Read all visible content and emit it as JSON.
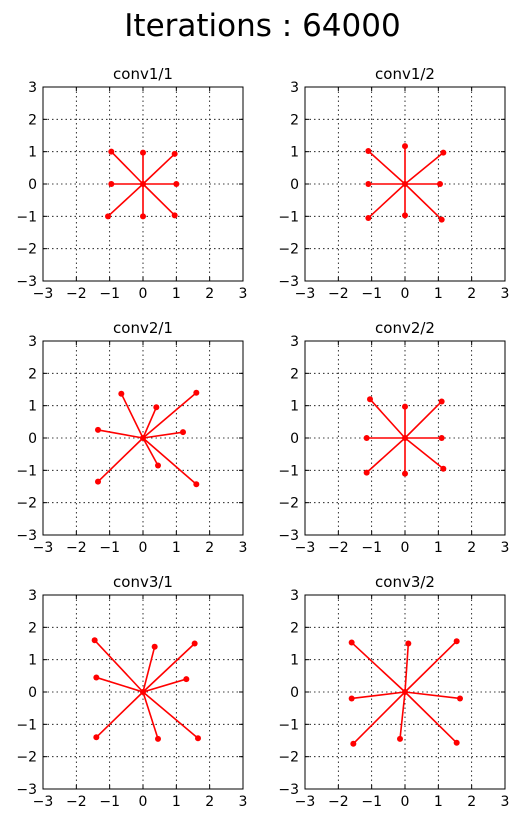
{
  "figure": {
    "title": "Iterations : 64000"
  },
  "style": {
    "series_color": "#ff0000",
    "axis_color": "#000000",
    "grid_color": "#000000"
  },
  "chart_data": [
    {
      "type": "scatter",
      "title": "conv1/1",
      "xlabel": "",
      "ylabel": "",
      "xlim": [
        -3,
        3
      ],
      "ylim": [
        -3,
        3
      ],
      "xticks": [
        "−3",
        "−2",
        "−1",
        "0",
        "1",
        "2",
        "3"
      ],
      "yticks": [
        "−3",
        "−2",
        "−1",
        "0",
        "1",
        "2",
        "3"
      ],
      "grid": true,
      "center": [
        0,
        0
      ],
      "points": [
        [
          -0.95,
          1.0
        ],
        [
          0.0,
          0.97
        ],
        [
          0.95,
          0.93
        ],
        [
          -0.95,
          0.0
        ],
        [
          1.0,
          0.0
        ],
        [
          -1.05,
          -1.0
        ],
        [
          0.0,
          -1.0
        ],
        [
          0.95,
          -0.97
        ]
      ]
    },
    {
      "type": "scatter",
      "title": "conv1/2",
      "xlabel": "",
      "ylabel": "",
      "xlim": [
        -3,
        3
      ],
      "ylim": [
        -3,
        3
      ],
      "xticks": [
        "−3",
        "−2",
        "−1",
        "0",
        "1",
        "2",
        "3"
      ],
      "yticks": [
        "−3",
        "−2",
        "−1",
        "0",
        "1",
        "2",
        "3"
      ],
      "grid": true,
      "center": [
        0,
        0
      ],
      "points": [
        [
          -1.1,
          1.02
        ],
        [
          0.0,
          1.17
        ],
        [
          1.15,
          0.97
        ],
        [
          -1.1,
          0.0
        ],
        [
          1.05,
          0.0
        ],
        [
          -1.1,
          -1.05
        ],
        [
          0.0,
          -0.97
        ],
        [
          1.1,
          -1.1
        ]
      ]
    },
    {
      "type": "scatter",
      "title": "conv2/1",
      "xlabel": "",
      "ylabel": "",
      "xlim": [
        -3,
        3
      ],
      "ylim": [
        -3,
        3
      ],
      "xticks": [
        "−3",
        "−2",
        "−1",
        "0",
        "1",
        "2",
        "3"
      ],
      "yticks": [
        "−3",
        "−2",
        "−1",
        "0",
        "1",
        "2",
        "3"
      ],
      "grid": true,
      "center": [
        0,
        0
      ],
      "points": [
        [
          -0.65,
          1.37
        ],
        [
          0.4,
          0.95
        ],
        [
          1.6,
          1.4
        ],
        [
          -1.35,
          0.25
        ],
        [
          1.2,
          0.18
        ],
        [
          -1.35,
          -1.35
        ],
        [
          0.45,
          -0.85
        ],
        [
          1.6,
          -1.43
        ]
      ]
    },
    {
      "type": "scatter",
      "title": "conv2/2",
      "xlabel": "",
      "ylabel": "",
      "xlim": [
        -3,
        3
      ],
      "ylim": [
        -3,
        3
      ],
      "xticks": [
        "−3",
        "−2",
        "−1",
        "0",
        "1",
        "2",
        "3"
      ],
      "yticks": [
        "−3",
        "−2",
        "−1",
        "0",
        "1",
        "2",
        "3"
      ],
      "grid": true,
      "center": [
        0,
        0
      ],
      "points": [
        [
          -1.05,
          1.2
        ],
        [
          0.0,
          0.97
        ],
        [
          1.1,
          1.13
        ],
        [
          -1.15,
          0.0
        ],
        [
          1.1,
          0.0
        ],
        [
          -1.15,
          -1.07
        ],
        [
          0.0,
          -1.1
        ],
        [
          1.15,
          -0.95
        ]
      ]
    },
    {
      "type": "scatter",
      "title": "conv3/1",
      "xlabel": "",
      "ylabel": "",
      "xlim": [
        -3,
        3
      ],
      "ylim": [
        -3,
        3
      ],
      "xticks": [
        "−3",
        "−2",
        "−1",
        "0",
        "1",
        "2",
        "3"
      ],
      "yticks": [
        "−3",
        "−2",
        "−1",
        "0",
        "1",
        "2",
        "3"
      ],
      "grid": true,
      "center": [
        0,
        0
      ],
      "points": [
        [
          -1.45,
          1.6
        ],
        [
          0.35,
          1.4
        ],
        [
          1.55,
          1.5
        ],
        [
          -1.4,
          0.45
        ],
        [
          1.3,
          0.4
        ],
        [
          -1.4,
          -1.4
        ],
        [
          0.45,
          -1.45
        ],
        [
          1.65,
          -1.43
        ]
      ]
    },
    {
      "type": "scatter",
      "title": "conv3/2",
      "xlabel": "",
      "ylabel": "",
      "xlim": [
        -3,
        3
      ],
      "ylim": [
        -3,
        3
      ],
      "xticks": [
        "−3",
        "−2",
        "−1",
        "0",
        "1",
        "2",
        "3"
      ],
      "yticks": [
        "−3",
        "−2",
        "−1",
        "0",
        "1",
        "2",
        "3"
      ],
      "grid": true,
      "center": [
        0,
        0
      ],
      "points": [
        [
          -1.6,
          1.53
        ],
        [
          0.1,
          1.5
        ],
        [
          1.55,
          1.57
        ],
        [
          -1.6,
          -0.2
        ],
        [
          1.65,
          -0.2
        ],
        [
          -1.55,
          -1.6
        ],
        [
          -0.15,
          -1.45
        ],
        [
          1.55,
          -1.57
        ]
      ]
    }
  ]
}
